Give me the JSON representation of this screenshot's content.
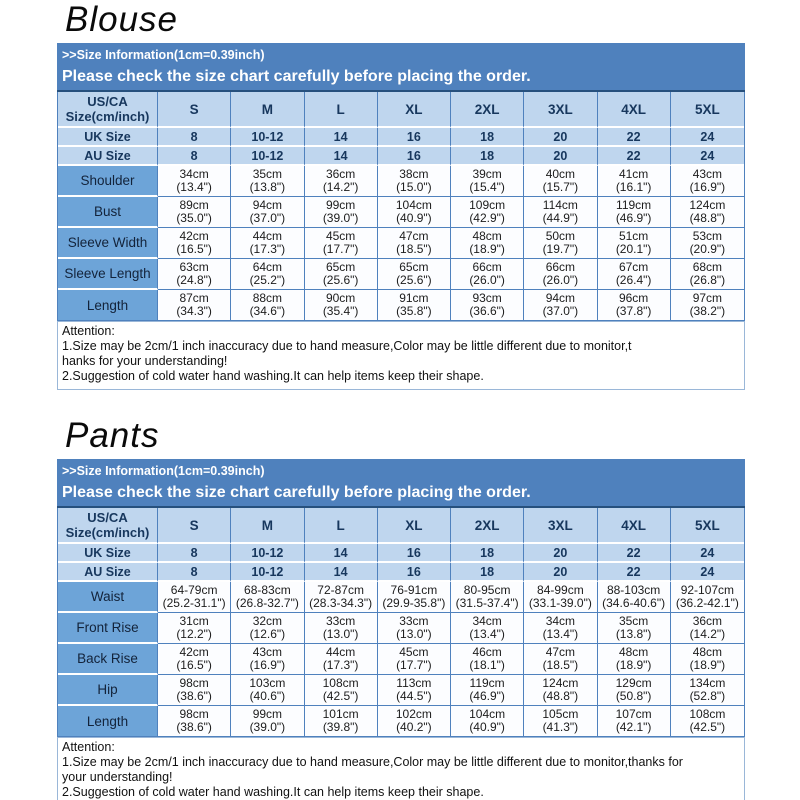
{
  "colors": {
    "banner_bg": "#4f81bd",
    "banner_text": "#ffffff",
    "banner_edge": "#26507d",
    "header_cell_bg": "#bfd6ee",
    "label_cell_bg": "#6da4d8",
    "data_cell_bg": "#fcfdff",
    "grid_line": "#4f81bd",
    "header_text": "#17375d",
    "attention_border": "#9ab7d8"
  },
  "sections": [
    {
      "title": "Blouse",
      "banner": {
        "line1": ">>Size Information(1cm=0.39inch)",
        "line2": "Please check the size chart carefully before placing the order."
      },
      "table": {
        "corner": [
          "US/CA",
          "Size(cm/inch)"
        ],
        "columns": [
          "S",
          "M",
          "L",
          "XL",
          "2XL",
          "3XL",
          "4XL",
          "5XL"
        ],
        "size_rows": [
          {
            "label": "UK Size",
            "values": [
              "8",
              "10-12",
              "14",
              "16",
              "18",
              "20",
              "22",
              "24"
            ]
          },
          {
            "label": "AU Size",
            "values": [
              "8",
              "10-12",
              "14",
              "16",
              "18",
              "20",
              "22",
              "24"
            ]
          }
        ],
        "measure_rows": [
          {
            "label": "Shoulder",
            "cm": [
              "34cm",
              "35cm",
              "36cm",
              "38cm",
              "39cm",
              "40cm",
              "41cm",
              "43cm"
            ],
            "inch": [
              "(13.4\")",
              "(13.8\")",
              "(14.2\")",
              "(15.0\")",
              "(15.4\")",
              "(15.7\")",
              "(16.1\")",
              "(16.9\")"
            ]
          },
          {
            "label": "Bust",
            "cm": [
              "89cm",
              "94cm",
              "99cm",
              "104cm",
              "109cm",
              "114cm",
              "119cm",
              "124cm"
            ],
            "inch": [
              "(35.0\")",
              "(37.0\")",
              "(39.0\")",
              "(40.9\")",
              "(42.9\")",
              "(44.9\")",
              "(46.9\")",
              "(48.8\")"
            ]
          },
          {
            "label": "Sleeve Width",
            "cm": [
              "42cm",
              "44cm",
              "45cm",
              "47cm",
              "48cm",
              "50cm",
              "51cm",
              "53cm"
            ],
            "inch": [
              "(16.5\")",
              "(17.3\")",
              "(17.7\")",
              "(18.5\")",
              "(18.9\")",
              "(19.7\")",
              "(20.1\")",
              "(20.9\")"
            ]
          },
          {
            "label": "Sleeve Length",
            "cm": [
              "63cm",
              "64cm",
              "65cm",
              "65cm",
              "66cm",
              "66cm",
              "67cm",
              "68cm"
            ],
            "inch": [
              "(24.8\")",
              "(25.2\")",
              "(25.6\")",
              "(25.6\")",
              "(26.0\")",
              "(26.0\")",
              "(26.4\")",
              "(26.8\")"
            ]
          },
          {
            "label": "Length",
            "cm": [
              "87cm",
              "88cm",
              "90cm",
              "91cm",
              "93cm",
              "94cm",
              "96cm",
              "97cm"
            ],
            "inch": [
              "(34.3\")",
              "(34.6\")",
              "(35.4\")",
              "(35.8\")",
              "(36.6\")",
              "(37.0\")",
              "(37.8\")",
              "(38.2\")"
            ]
          }
        ]
      },
      "attention": {
        "lines": [
          "Attention:",
          "1.Size may be 2cm/1 inch inaccuracy due to hand measure,Color may be little different due to monitor,t",
          "hanks for your understanding!",
          "2.Suggestion of cold water hand washing.It can help items keep their shape."
        ]
      }
    },
    {
      "title": "Pants",
      "banner": {
        "line1": ">>Size Information(1cm=0.39inch)",
        "line2": "Please check the size chart carefully before placing the order."
      },
      "table": {
        "corner": [
          "US/CA",
          "Size(cm/inch)"
        ],
        "columns": [
          "S",
          "M",
          "L",
          "XL",
          "2XL",
          "3XL",
          "4XL",
          "5XL"
        ],
        "size_rows": [
          {
            "label": "UK Size",
            "values": [
              "8",
              "10-12",
              "14",
              "16",
              "18",
              "20",
              "22",
              "24"
            ]
          },
          {
            "label": "AU Size",
            "values": [
              "8",
              "10-12",
              "14",
              "16",
              "18",
              "20",
              "22",
              "24"
            ]
          }
        ],
        "measure_rows": [
          {
            "label": "Waist",
            "cm": [
              "64-79cm",
              "68-83cm",
              "72-87cm",
              "76-91cm",
              "80-95cm",
              "84-99cm",
              "88-103cm",
              "92-107cm"
            ],
            "inch": [
              "(25.2-31.1\")",
              "(26.8-32.7\")",
              "(28.3-34.3\")",
              "(29.9-35.8\")",
              "(31.5-37.4\")",
              "(33.1-39.0\")",
              "(34.6-40.6\")",
              "(36.2-42.1\")"
            ]
          },
          {
            "label": "Front Rise",
            "cm": [
              "31cm",
              "32cm",
              "33cm",
              "33cm",
              "34cm",
              "34cm",
              "35cm",
              "36cm"
            ],
            "inch": [
              "(12.2\")",
              "(12.6\")",
              "(13.0\")",
              "(13.0\")",
              "(13.4\")",
              "(13.4\")",
              "(13.8\")",
              "(14.2\")"
            ]
          },
          {
            "label": "Back Rise",
            "cm": [
              "42cm",
              "43cm",
              "44cm",
              "45cm",
              "46cm",
              "47cm",
              "48cm",
              "48cm"
            ],
            "inch": [
              "(16.5\")",
              "(16.9\")",
              "(17.3\")",
              "(17.7\")",
              "(18.1\")",
              "(18.5\")",
              "(18.9\")",
              "(18.9\")"
            ]
          },
          {
            "label": "Hip",
            "cm": [
              "98cm",
              "103cm",
              "108cm",
              "113cm",
              "119cm",
              "124cm",
              "129cm",
              "134cm"
            ],
            "inch": [
              "(38.6\")",
              "(40.6\")",
              "(42.5\")",
              "(44.5\")",
              "(46.9\")",
              "(48.8\")",
              "(50.8\")",
              "(52.8\")"
            ]
          },
          {
            "label": "Length",
            "cm": [
              "98cm",
              "99cm",
              "101cm",
              "102cm",
              "104cm",
              "105cm",
              "107cm",
              "108cm"
            ],
            "inch": [
              "(38.6\")",
              "(39.0\")",
              "(39.8\")",
              "(40.2\")",
              "(40.9\")",
              "(41.3\")",
              "(42.1\")",
              "(42.5\")"
            ]
          }
        ]
      },
      "attention": {
        "lines": [
          "Attention:",
          "1.Size may be 2cm/1 inch inaccuracy due to hand measure,Color may be little different due to monitor,thanks for",
          "your understanding!",
          "2.Suggestion of cold water hand washing.It can help items keep their shape."
        ]
      }
    }
  ]
}
